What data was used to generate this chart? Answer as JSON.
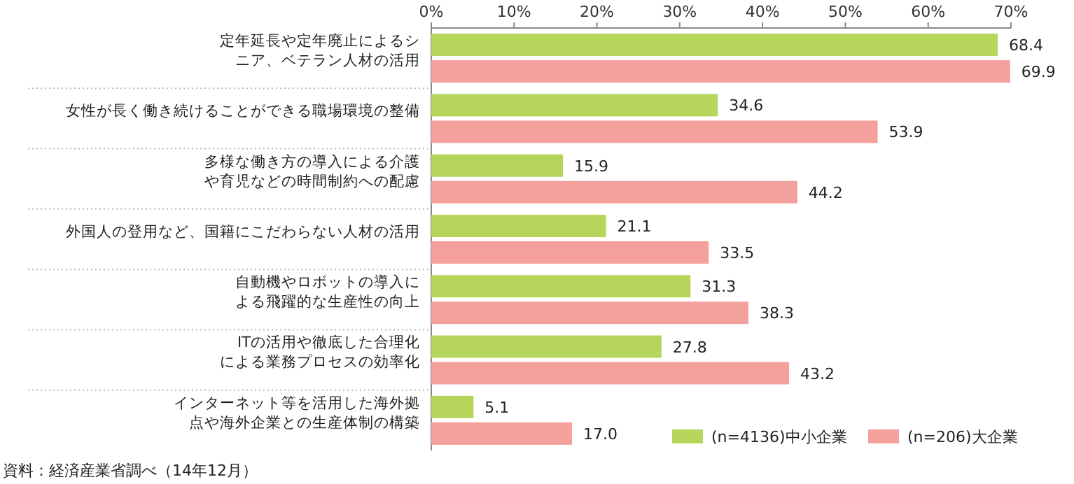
{
  "chart_data": {
    "type": "bar",
    "orientation": "horizontal",
    "categories": [
      "定年延長や定年廃止によるシニア、ベテラン人材の活用",
      "女性が長く働き続けることができる職場環境の整備",
      "多様な働き方の導入による介護や育児などの時間制約への配慮",
      "外国人の登用など、国籍にこだわらない人材の活用",
      "自動機やロボットの導入による飛躍的な生産性の向上",
      "ITの活用や徹底した合理化による業務プロセスの効率化",
      "インターネット等を活用した海外拠点や海外企業との生産体制の構築"
    ],
    "series": [
      {
        "name": "(n=4136)中小企業",
        "color": "#b5d65a",
        "values": [
          68.4,
          34.6,
          15.9,
          21.1,
          31.3,
          27.8,
          5.1
        ]
      },
      {
        "name": "(n=206)大企業",
        "color": "#f4a09c",
        "values": [
          69.9,
          53.9,
          44.2,
          33.5,
          38.3,
          43.2,
          17.0
        ],
        "value_labels": [
          "69.9",
          "53.9",
          "44.2",
          "33.5",
          "38.3",
          "43.2",
          "17.0"
        ]
      }
    ],
    "xlim": [
      0,
      70
    ],
    "xticks": [
      {
        "value": 0,
        "label": "0%"
      },
      {
        "value": 10,
        "label": "10%"
      },
      {
        "value": 20,
        "label": "20%"
      },
      {
        "value": 30,
        "label": "30%"
      },
      {
        "value": 40,
        "label": "40%"
      },
      {
        "value": 50,
        "label": "50%"
      },
      {
        "value": 60,
        "label": "60%"
      },
      {
        "value": 70,
        "label": "70%"
      }
    ],
    "data_labels": true,
    "legend": "bottom right",
    "annotations": [
      "資料：経済産業省調べ（14年12月）"
    ]
  }
}
